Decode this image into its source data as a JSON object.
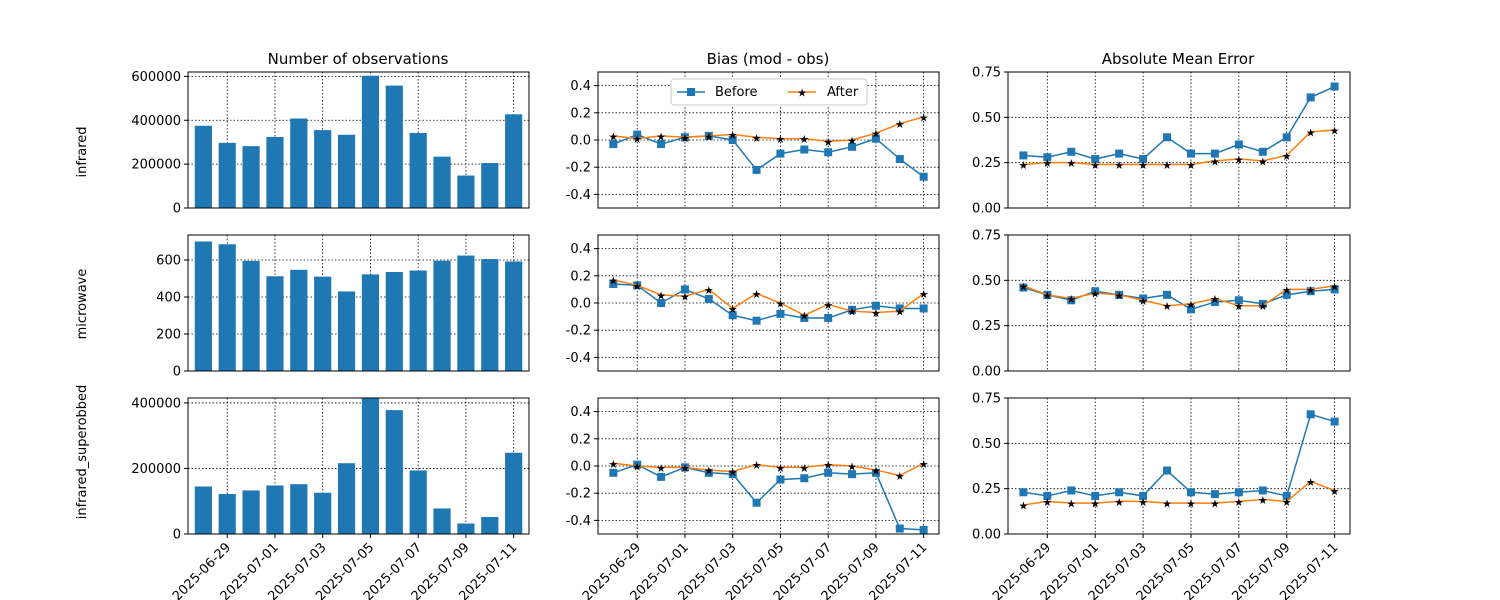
{
  "figure": {
    "column_titles": [
      "Number of observations",
      "Bias (mod - obs)",
      "Absolute Mean Error"
    ],
    "row_labels": [
      "infrared",
      "microwave",
      "infrared_superobbed"
    ],
    "legend": [
      "Before",
      "After"
    ],
    "colors": {
      "before": "#1f77b4",
      "after": "#ff7f0e",
      "bar": "#1f77b4"
    },
    "x_tick_labels": [
      "2025-06-29",
      "2025-07-01",
      "2025-07-03",
      "2025-07-05",
      "2025-07-07",
      "2025-07-09",
      "2025-07-11"
    ]
  },
  "chart_data": [
    {
      "type": "bar",
      "title": "Number of observations",
      "ylabel": "infrared",
      "categories": [
        "2025-06-28",
        "2025-06-29",
        "2025-06-30",
        "2025-07-01",
        "2025-07-02",
        "2025-07-03",
        "2025-07-04",
        "2025-07-05",
        "2025-07-06",
        "2025-07-07",
        "2025-07-08",
        "2025-07-09",
        "2025-07-10",
        "2025-07-11"
      ],
      "values": [
        375000,
        297000,
        282000,
        324000,
        408000,
        355000,
        334000,
        603000,
        558000,
        342000,
        234000,
        148000,
        205000,
        427000
      ],
      "ylim": [
        0,
        620000
      ],
      "yticks": [
        0,
        200000,
        400000,
        600000
      ],
      "grid": true
    },
    {
      "type": "line",
      "title": "Bias (mod - obs)",
      "legend_position": "top-center",
      "x": [
        "2025-06-28",
        "2025-06-29",
        "2025-06-30",
        "2025-07-01",
        "2025-07-02",
        "2025-07-03",
        "2025-07-04",
        "2025-07-05",
        "2025-07-06",
        "2025-07-07",
        "2025-07-08",
        "2025-07-09",
        "2025-07-10",
        "2025-07-11"
      ],
      "series": [
        {
          "name": "Before",
          "values": [
            -0.03,
            0.04,
            -0.03,
            0.02,
            0.03,
            0.0,
            -0.22,
            -0.1,
            -0.07,
            -0.09,
            -0.05,
            0.01,
            -0.14,
            -0.27
          ]
        },
        {
          "name": "After",
          "values": [
            0.03,
            0.01,
            0.03,
            0.02,
            0.03,
            0.04,
            0.02,
            0.01,
            0.01,
            -0.01,
            0.0,
            0.05,
            0.12,
            0.17
          ]
        }
      ],
      "ylim": [
        -0.5,
        0.5
      ],
      "yticks": [
        -0.4,
        -0.2,
        0.0,
        0.2,
        0.4
      ],
      "grid": true
    },
    {
      "type": "line",
      "title": "Absolute Mean Error",
      "x": [
        "2025-06-28",
        "2025-06-29",
        "2025-06-30",
        "2025-07-01",
        "2025-07-02",
        "2025-07-03",
        "2025-07-04",
        "2025-07-05",
        "2025-07-06",
        "2025-07-07",
        "2025-07-08",
        "2025-07-09",
        "2025-07-10",
        "2025-07-11"
      ],
      "series": [
        {
          "name": "Before",
          "values": [
            0.29,
            0.28,
            0.31,
            0.27,
            0.3,
            0.27,
            0.39,
            0.3,
            0.3,
            0.35,
            0.31,
            0.39,
            0.61,
            0.67
          ]
        },
        {
          "name": "After",
          "values": [
            0.24,
            0.25,
            0.25,
            0.24,
            0.24,
            0.24,
            0.24,
            0.24,
            0.26,
            0.27,
            0.26,
            0.29,
            0.42,
            0.43
          ]
        }
      ],
      "ylim": [
        0,
        0.75
      ],
      "yticks": [
        0.0,
        0.25,
        0.5,
        0.75
      ],
      "grid": true
    },
    {
      "type": "bar",
      "ylabel": "microwave",
      "categories": [
        "2025-06-28",
        "2025-06-29",
        "2025-06-30",
        "2025-07-01",
        "2025-07-02",
        "2025-07-03",
        "2025-07-04",
        "2025-07-05",
        "2025-07-06",
        "2025-07-07",
        "2025-07-08",
        "2025-07-09",
        "2025-07-10",
        "2025-07-11"
      ],
      "values": [
        700,
        685,
        595,
        512,
        547,
        510,
        430,
        522,
        535,
        543,
        596,
        624,
        605,
        592
      ],
      "ylim": [
        0,
        735
      ],
      "yticks": [
        0,
        200,
        400,
        600
      ],
      "grid": true
    },
    {
      "type": "line",
      "x": [
        "2025-06-28",
        "2025-06-29",
        "2025-06-30",
        "2025-07-01",
        "2025-07-02",
        "2025-07-03",
        "2025-07-04",
        "2025-07-05",
        "2025-07-06",
        "2025-07-07",
        "2025-07-08",
        "2025-07-09",
        "2025-07-10",
        "2025-07-11"
      ],
      "series": [
        {
          "name": "Before",
          "values": [
            0.14,
            0.13,
            0.0,
            0.1,
            0.03,
            -0.09,
            -0.13,
            -0.08,
            -0.11,
            -0.11,
            -0.05,
            -0.02,
            -0.04,
            -0.04
          ]
        },
        {
          "name": "After",
          "values": [
            0.17,
            0.13,
            0.06,
            0.05,
            0.1,
            -0.04,
            0.07,
            0.0,
            -0.09,
            -0.01,
            -0.06,
            -0.07,
            -0.06,
            0.07
          ]
        }
      ],
      "ylim": [
        -0.5,
        0.5
      ],
      "yticks": [
        -0.4,
        -0.2,
        0.0,
        0.2,
        0.4
      ],
      "grid": true
    },
    {
      "type": "line",
      "x": [
        "2025-06-28",
        "2025-06-29",
        "2025-06-30",
        "2025-07-01",
        "2025-07-02",
        "2025-07-03",
        "2025-07-04",
        "2025-07-05",
        "2025-07-06",
        "2025-07-07",
        "2025-07-08",
        "2025-07-09",
        "2025-07-10",
        "2025-07-11"
      ],
      "series": [
        {
          "name": "Before",
          "values": [
            0.46,
            0.42,
            0.39,
            0.44,
            0.42,
            0.4,
            0.42,
            0.34,
            0.38,
            0.39,
            0.37,
            0.42,
            0.44,
            0.45
          ]
        },
        {
          "name": "After",
          "values": [
            0.47,
            0.42,
            0.4,
            0.43,
            0.42,
            0.39,
            0.36,
            0.37,
            0.4,
            0.36,
            0.36,
            0.45,
            0.45,
            0.47
          ]
        }
      ],
      "ylim": [
        0,
        0.75
      ],
      "yticks": [
        0.0,
        0.25,
        0.5,
        0.75
      ],
      "grid": true
    },
    {
      "type": "bar",
      "ylabel": "infrared_superobbed",
      "categories": [
        "2025-06-28",
        "2025-06-29",
        "2025-06-30",
        "2025-07-01",
        "2025-07-02",
        "2025-07-03",
        "2025-07-04",
        "2025-07-05",
        "2025-07-06",
        "2025-07-07",
        "2025-07-08",
        "2025-07-09",
        "2025-07-10",
        "2025-07-11"
      ],
      "values": [
        145000,
        122000,
        133000,
        148000,
        152000,
        126000,
        216000,
        416000,
        378000,
        194000,
        78000,
        32000,
        52000,
        248000
      ],
      "ylim": [
        0,
        415000
      ],
      "yticks": [
        0,
        200000,
        400000
      ],
      "grid": true
    },
    {
      "type": "line",
      "x": [
        "2025-06-28",
        "2025-06-29",
        "2025-06-30",
        "2025-07-01",
        "2025-07-02",
        "2025-07-03",
        "2025-07-04",
        "2025-07-05",
        "2025-07-06",
        "2025-07-07",
        "2025-07-08",
        "2025-07-09",
        "2025-07-10",
        "2025-07-11"
      ],
      "series": [
        {
          "name": "Before",
          "values": [
            -0.05,
            0.01,
            -0.08,
            -0.01,
            -0.05,
            -0.06,
            -0.27,
            -0.1,
            -0.09,
            -0.05,
            -0.06,
            -0.05,
            -0.46,
            -0.47
          ]
        },
        {
          "name": "After",
          "values": [
            0.02,
            0.0,
            -0.01,
            -0.01,
            -0.03,
            -0.04,
            0.01,
            -0.01,
            -0.01,
            0.01,
            0.0,
            -0.03,
            -0.07,
            0.02
          ]
        }
      ],
      "ylim": [
        -0.5,
        0.5
      ],
      "yticks": [
        -0.4,
        -0.2,
        0.0,
        0.2,
        0.4
      ],
      "grid": true
    },
    {
      "type": "line",
      "x": [
        "2025-06-28",
        "2025-06-29",
        "2025-06-30",
        "2025-07-01",
        "2025-07-02",
        "2025-07-03",
        "2025-07-04",
        "2025-07-05",
        "2025-07-06",
        "2025-07-07",
        "2025-07-08",
        "2025-07-09",
        "2025-07-10",
        "2025-07-11"
      ],
      "series": [
        {
          "name": "Before",
          "values": [
            0.23,
            0.21,
            0.24,
            0.21,
            0.23,
            0.21,
            0.35,
            0.23,
            0.22,
            0.23,
            0.24,
            0.21,
            0.66,
            0.62
          ]
        },
        {
          "name": "After",
          "values": [
            0.16,
            0.18,
            0.17,
            0.17,
            0.18,
            0.18,
            0.17,
            0.17,
            0.17,
            0.18,
            0.19,
            0.18,
            0.29,
            0.24
          ]
        }
      ],
      "ylim": [
        0,
        0.75
      ],
      "yticks": [
        0.0,
        0.25,
        0.5,
        0.75
      ],
      "grid": true
    }
  ]
}
